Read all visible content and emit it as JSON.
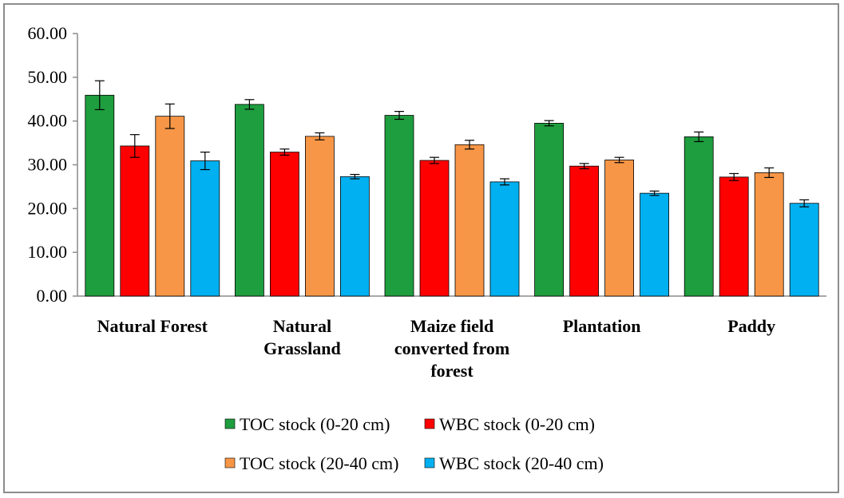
{
  "chart_data": {
    "type": "bar",
    "categories": [
      "Natural Forest",
      "Natural Grassland",
      "Maize field converted from forest",
      "Plantation",
      "Paddy"
    ],
    "category_lines": [
      [
        "Natural Forest"
      ],
      [
        "Natural",
        "Grassland"
      ],
      [
        "Maize field",
        "converted from",
        "forest"
      ],
      [
        "Plantation"
      ],
      [
        "Paddy"
      ]
    ],
    "series": [
      {
        "name": "TOC stock (0-20 cm)",
        "color": "#1e9e3e",
        "values": [
          45.9,
          43.8,
          41.3,
          39.5,
          36.4
        ],
        "errors": [
          3.3,
          1.1,
          0.9,
          0.6,
          1.1
        ]
      },
      {
        "name": "WBC stock (0-20 cm)",
        "color": "#ff0000",
        "values": [
          34.3,
          32.9,
          31.0,
          29.7,
          27.2
        ],
        "errors": [
          2.6,
          0.7,
          0.7,
          0.6,
          0.8
        ]
      },
      {
        "name": "TOC stock (20-40 cm)",
        "color": "#f79646",
        "values": [
          41.1,
          36.5,
          34.6,
          31.1,
          28.2
        ],
        "errors": [
          2.8,
          0.8,
          1.0,
          0.6,
          1.1
        ]
      },
      {
        "name": "WBC stock (20-40 cm)",
        "color": "#00b0f0",
        "values": [
          30.9,
          27.3,
          26.1,
          23.5,
          21.2
        ],
        "errors": [
          2.0,
          0.5,
          0.7,
          0.5,
          0.8
        ]
      }
    ],
    "ylim": [
      0,
      60
    ],
    "yticks": [
      "0.00",
      "10.00",
      "20.00",
      "30.00",
      "40.00",
      "50.00",
      "60.00"
    ],
    "grid": false,
    "legend_position": "bottom",
    "title": "",
    "xlabel": "",
    "ylabel": ""
  }
}
